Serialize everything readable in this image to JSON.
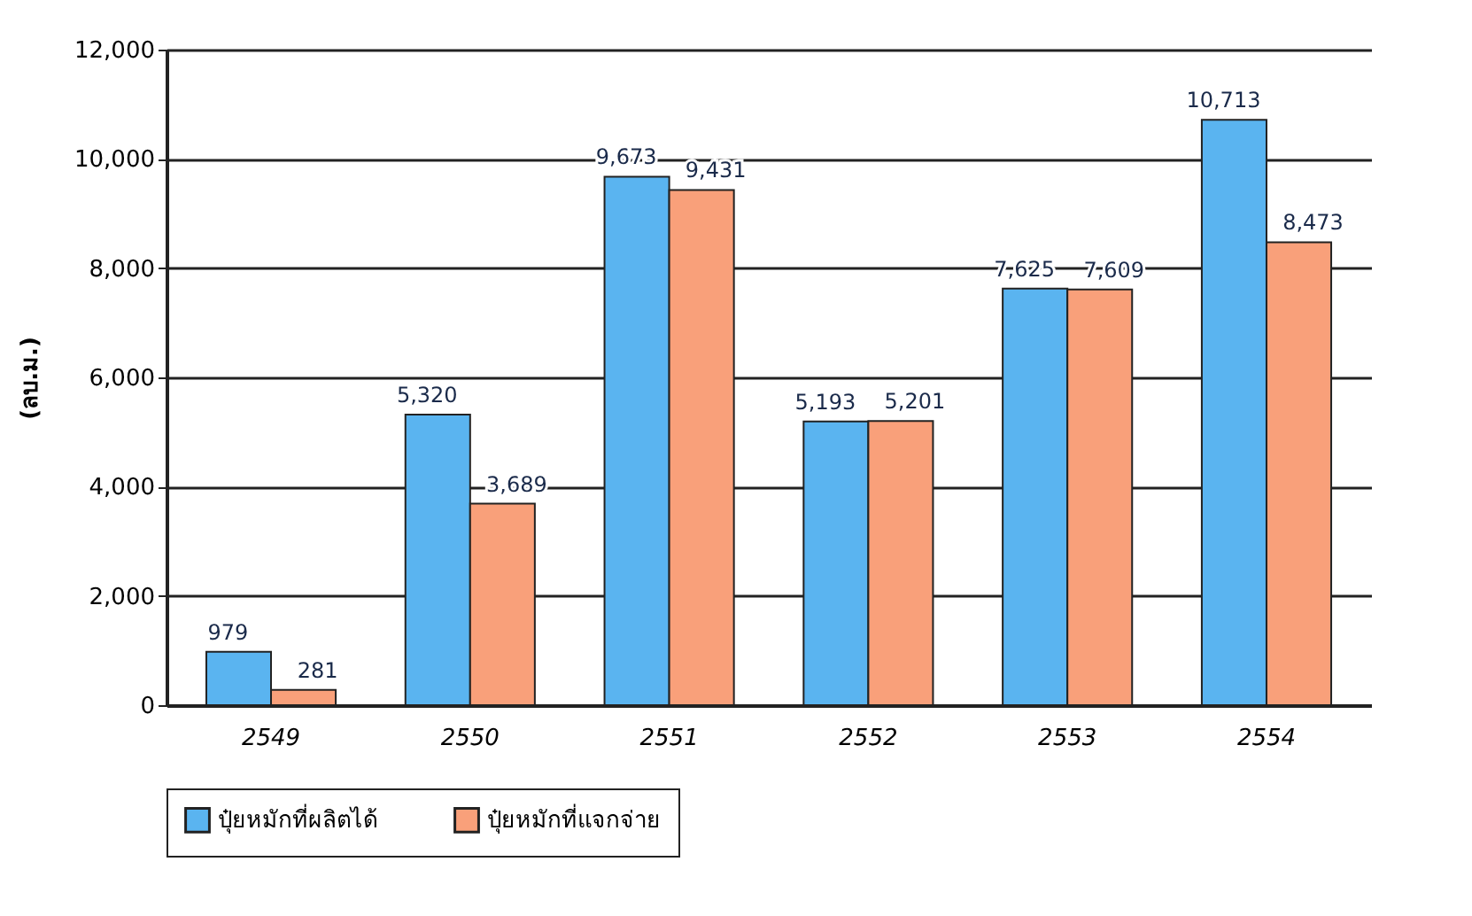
{
  "chart_data": {
    "type": "bar",
    "ylabel": "(ลบ.ม.)",
    "categories": [
      "2549",
      "2550",
      "2551",
      "2552",
      "2553",
      "2554"
    ],
    "series": [
      {
        "name": "ปุ๋ยหมักที่ผลิตได้",
        "color": "#5ab4f0",
        "values": [
          979,
          5320,
          9673,
          5193,
          7625,
          10713
        ],
        "value_labels": [
          "979",
          "5,320",
          "9,673",
          "5,193",
          "7,625",
          "10,713"
        ]
      },
      {
        "name": "ปุ๋ยหมักที่แจกจ่าย",
        "color": "#f9a07a",
        "values": [
          281,
          3689,
          9431,
          5201,
          7609,
          8473
        ],
        "value_labels": [
          "281",
          "3,689",
          "9,431",
          "5,201",
          "7,609",
          "8,473"
        ]
      }
    ],
    "ylim": [
      0,
      12000
    ],
    "yticks": [
      0,
      {
        "value": 2000,
        "label": "2,000"
      },
      {
        "value": 4000,
        "label": "4,000"
      },
      {
        "value": 6000,
        "label": "6,000"
      },
      {
        "value": 8000,
        "label": "8,000"
      },
      {
        "value": 10000,
        "label": "10,000"
      },
      {
        "value": 12000,
        "label": "12,000"
      }
    ],
    "grid": "y",
    "legend": "bottom"
  }
}
